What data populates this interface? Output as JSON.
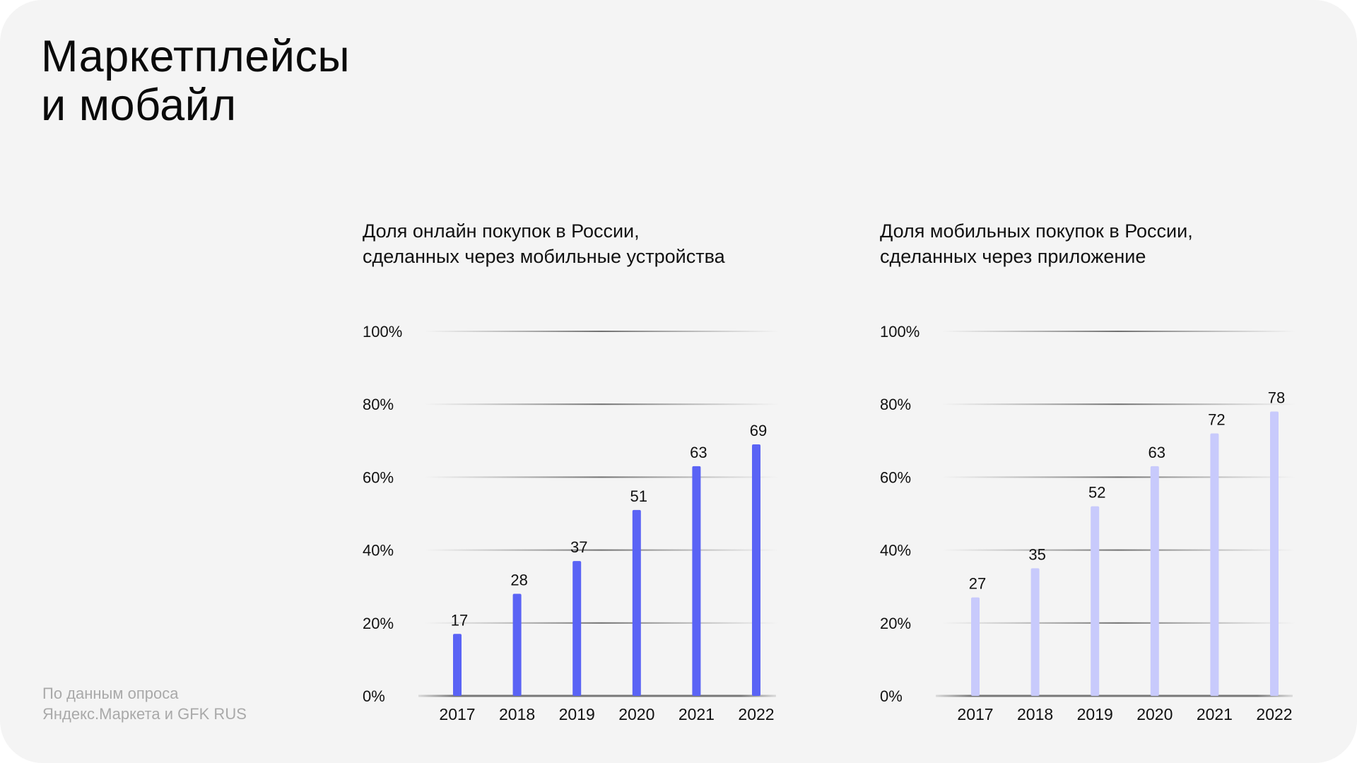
{
  "title": {
    "line1": "Маркетплейсы",
    "line2": "и мобайл"
  },
  "footnote": {
    "line1": "По данным опроса",
    "line2": "Яндекс.Маркета и GFK RUS"
  },
  "colors": {
    "background": "#f4f4f4",
    "bar_primary": "#5a63f5",
    "bar_secondary": "#c8cafc",
    "grid": "#8a8a8a"
  },
  "chart_data": [
    {
      "type": "bar",
      "title": "Доля онлайн покупок в России, сделанных через мобильные устройства",
      "title_lines": [
        "Доля онлайн покупок в России,",
        "сделанных через мобильные устройства"
      ],
      "categories": [
        "2017",
        "2018",
        "2019",
        "2020",
        "2021",
        "2022"
      ],
      "values": [
        17,
        28,
        37,
        51,
        63,
        69
      ],
      "ylim": [
        0,
        100
      ],
      "yticks": [
        "0%",
        "20%",
        "40%",
        "60%",
        "80%",
        "100%"
      ],
      "xlabel": "",
      "ylabel": "",
      "grid": true,
      "color": "#5a63f5"
    },
    {
      "type": "bar",
      "title": "Доля мобильных покупок в России, сделанных через приложение",
      "title_lines": [
        "Доля мобильных покупок в России,",
        "сделанных через приложение"
      ],
      "categories": [
        "2017",
        "2018",
        "2019",
        "2020",
        "2021",
        "2022"
      ],
      "values": [
        27,
        35,
        52,
        63,
        72,
        78
      ],
      "ylim": [
        0,
        100
      ],
      "yticks": [
        "0%",
        "20%",
        "40%",
        "60%",
        "80%",
        "100%"
      ],
      "xlabel": "",
      "ylabel": "",
      "grid": true,
      "color": "#c8cafc"
    }
  ]
}
